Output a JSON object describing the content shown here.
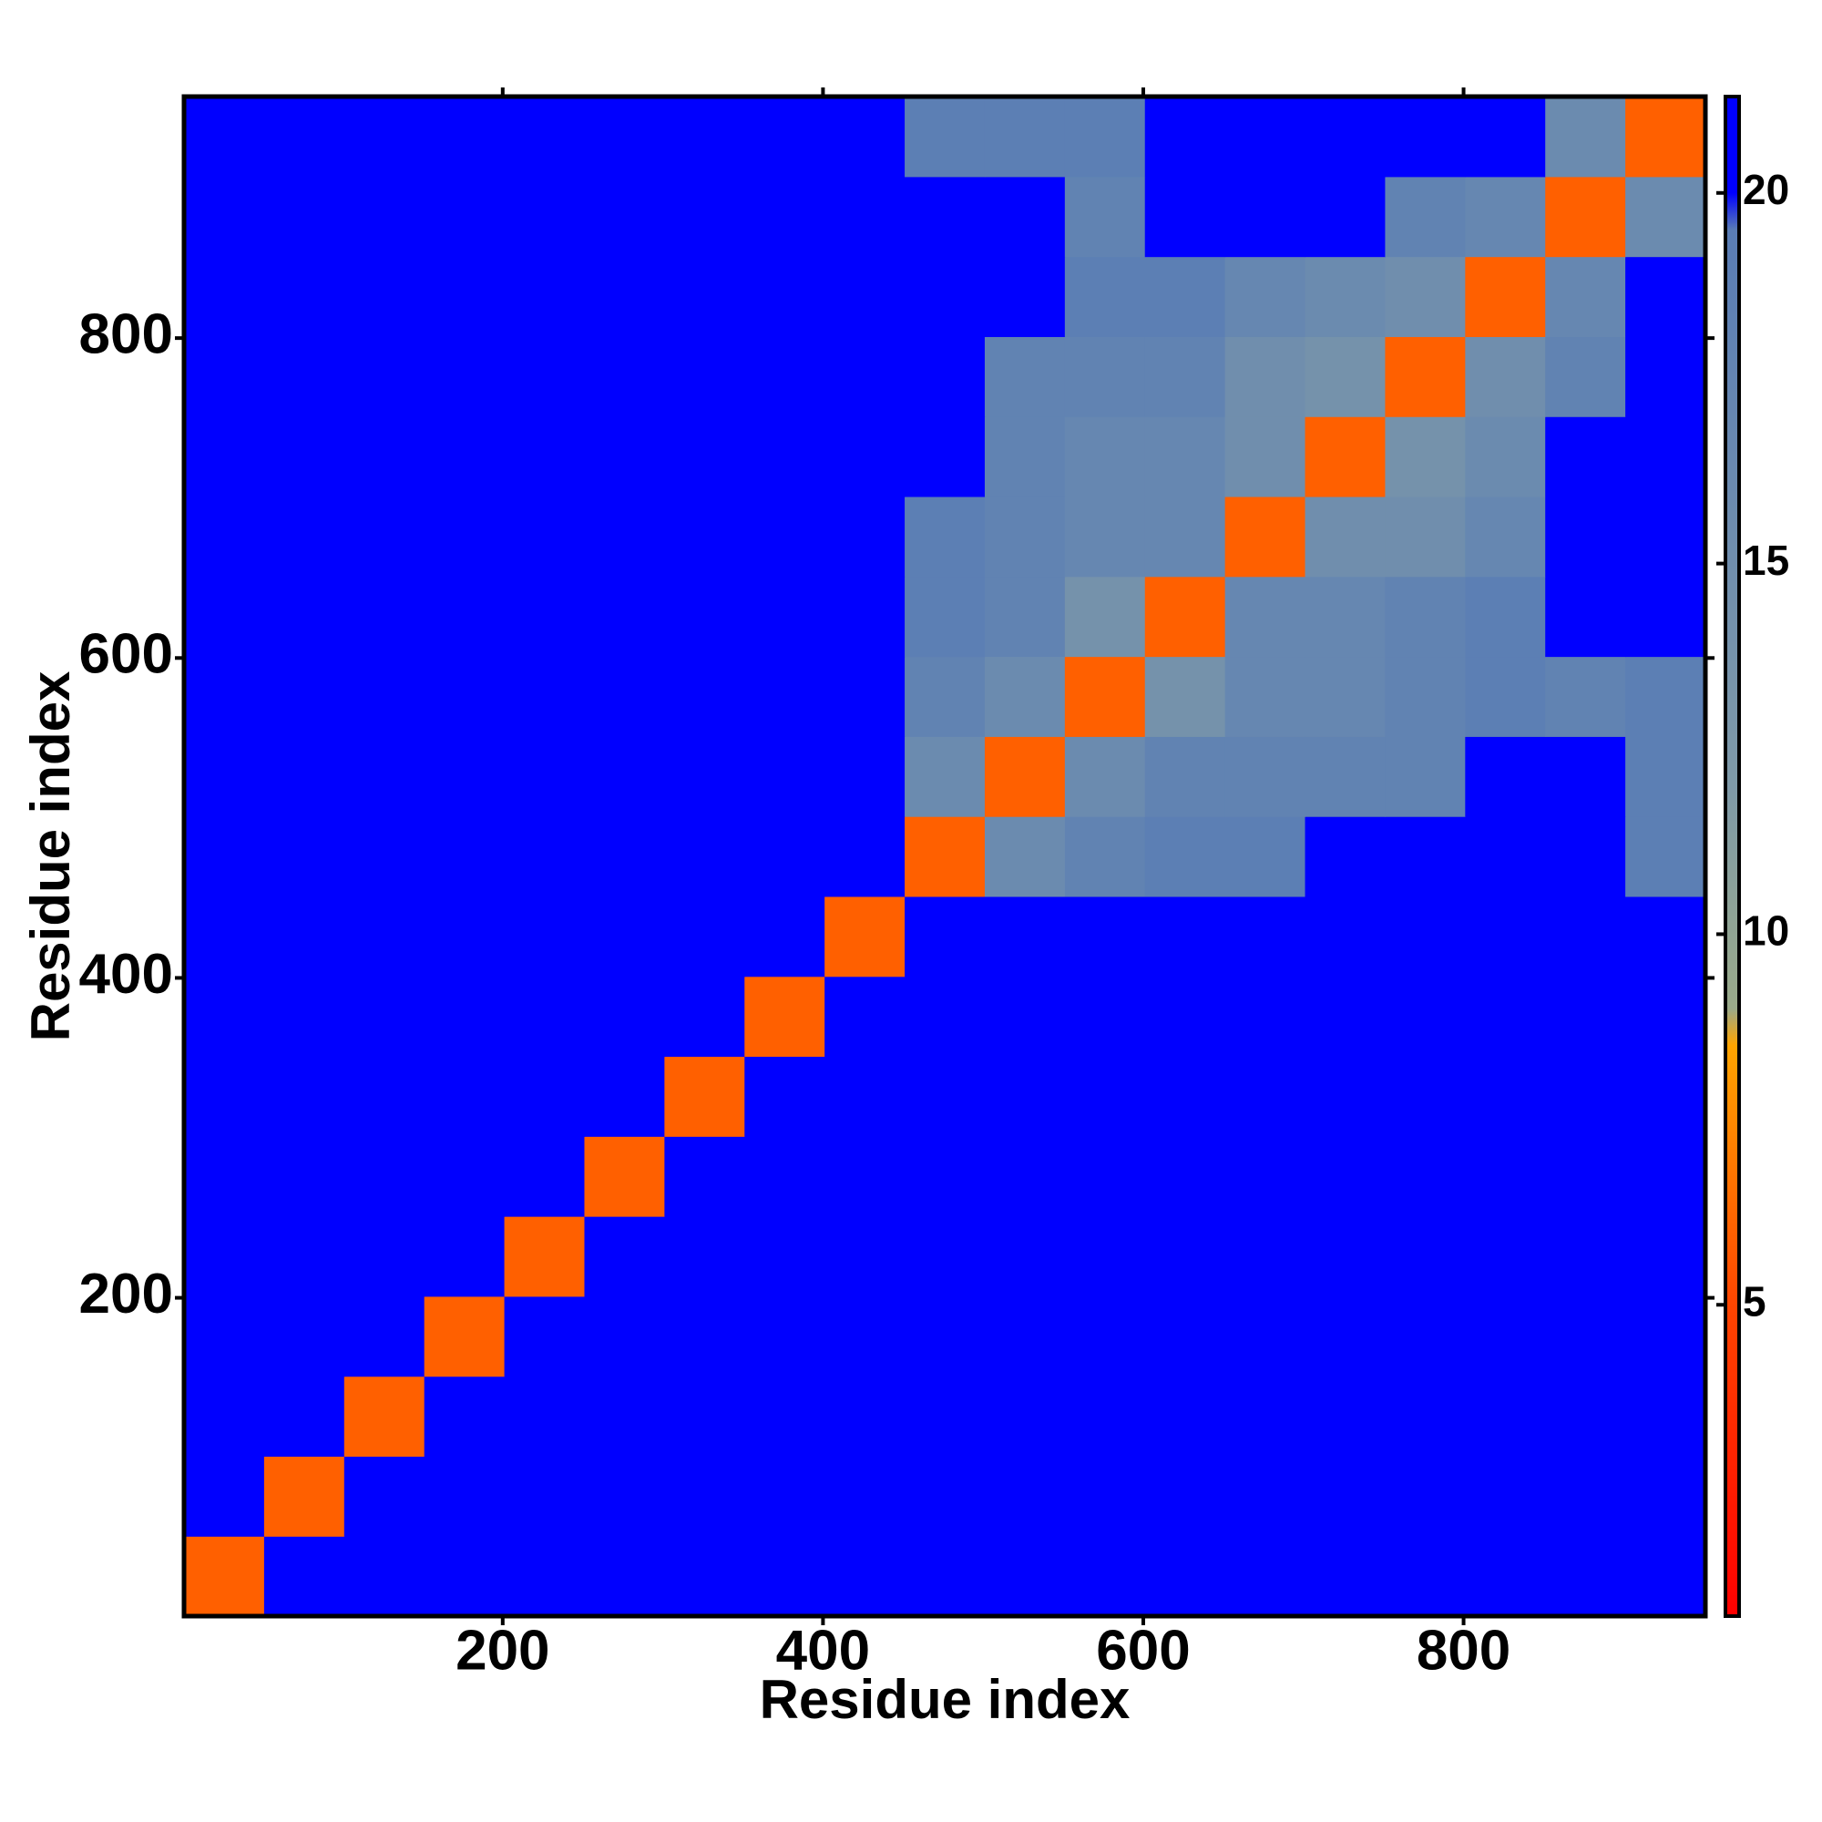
{
  "chart_data": {
    "type": "heatmap",
    "xlabel": "Residue index",
    "ylabel": "Residue index",
    "bins": [
      1,
      51,
      101,
      151,
      201,
      251,
      301,
      351,
      401,
      451,
      501,
      551,
      601,
      651,
      701,
      751,
      801,
      851,
      901,
      951
    ],
    "z": [
      [
        6,
        21,
        21,
        21,
        21,
        21,
        21,
        21,
        21,
        21,
        21,
        21,
        21,
        21,
        21,
        21,
        21,
        21,
        21
      ],
      [
        21,
        6,
        21,
        21,
        21,
        21,
        21,
        21,
        21,
        21,
        21,
        21,
        21,
        21,
        21,
        21,
        21,
        21,
        21
      ],
      [
        21,
        21,
        6,
        21,
        21,
        21,
        21,
        21,
        21,
        21,
        21,
        21,
        21,
        21,
        21,
        21,
        21,
        21,
        21
      ],
      [
        21,
        21,
        21,
        6,
        21,
        21,
        21,
        21,
        21,
        21,
        21,
        21,
        21,
        21,
        21,
        21,
        21,
        21,
        21
      ],
      [
        21,
        21,
        21,
        21,
        6,
        21,
        21,
        21,
        21,
        21,
        21,
        21,
        21,
        21,
        21,
        21,
        21,
        21,
        21
      ],
      [
        21,
        21,
        21,
        21,
        21,
        6,
        21,
        21,
        21,
        21,
        21,
        21,
        21,
        21,
        21,
        21,
        21,
        21,
        21
      ],
      [
        21,
        21,
        21,
        21,
        21,
        21,
        6,
        21,
        21,
        21,
        21,
        21,
        21,
        21,
        21,
        21,
        21,
        21,
        21
      ],
      [
        21,
        21,
        21,
        21,
        21,
        21,
        21,
        6,
        21,
        21,
        21,
        21,
        21,
        21,
        21,
        21,
        21,
        21,
        21
      ],
      [
        21,
        21,
        21,
        21,
        21,
        21,
        21,
        21,
        6,
        21,
        21,
        21,
        21,
        21,
        21,
        21,
        21,
        21,
        21
      ],
      [
        21,
        21,
        21,
        21,
        21,
        21,
        21,
        21,
        21,
        6,
        16,
        18,
        19,
        19,
        21,
        21,
        21,
        21,
        19
      ],
      [
        21,
        21,
        21,
        21,
        21,
        21,
        21,
        21,
        21,
        16,
        6,
        16,
        18,
        18,
        18,
        18,
        21,
        21,
        19
      ],
      [
        21,
        21,
        21,
        21,
        21,
        21,
        21,
        21,
        21,
        18,
        16,
        6,
        14,
        17,
        17,
        18,
        19,
        18,
        19
      ],
      [
        21,
        21,
        21,
        21,
        21,
        21,
        21,
        21,
        21,
        19,
        18,
        14,
        6,
        17,
        17,
        18,
        19,
        21,
        21
      ],
      [
        21,
        21,
        21,
        21,
        21,
        21,
        21,
        21,
        21,
        19,
        18,
        17,
        17,
        6,
        15,
        15,
        17,
        21,
        21
      ],
      [
        21,
        21,
        21,
        21,
        21,
        21,
        21,
        21,
        21,
        21,
        18,
        17,
        17,
        15,
        6,
        14,
        16,
        21,
        21
      ],
      [
        21,
        21,
        21,
        21,
        21,
        21,
        21,
        21,
        21,
        21,
        18,
        18,
        18,
        15,
        14,
        6,
        15,
        18,
        21
      ],
      [
        21,
        21,
        21,
        21,
        21,
        21,
        21,
        21,
        21,
        21,
        21,
        19,
        19,
        17,
        16,
        15,
        6,
        17,
        21
      ],
      [
        21,
        21,
        21,
        21,
        21,
        21,
        21,
        21,
        21,
        21,
        21,
        18,
        21,
        21,
        21,
        18,
        17,
        6,
        16
      ],
      [
        21,
        21,
        21,
        21,
        21,
        21,
        21,
        21,
        21,
        19,
        19,
        19,
        21,
        21,
        21,
        21,
        21,
        16,
        6
      ]
    ],
    "xlim": [
      1,
      951
    ],
    "ylim": [
      1,
      951
    ],
    "xticks": [
      200,
      400,
      600,
      800
    ],
    "yticks": [
      200,
      400,
      600,
      800
    ],
    "zlim": [
      0.8,
      21.3
    ],
    "zticks": [
      5,
      10,
      15,
      20
    ],
    "colorscale": [
      [
        0.8,
        "#ff0000"
      ],
      [
        5,
        "#ff4500"
      ],
      [
        8.5,
        "#ffa500"
      ],
      [
        9,
        "#9aaa8a"
      ],
      [
        12,
        "#7f9aa8"
      ],
      [
        19.5,
        "#5a7db5"
      ],
      [
        20,
        "#0000ff"
      ],
      [
        21.3,
        "#0000ff"
      ]
    ]
  }
}
